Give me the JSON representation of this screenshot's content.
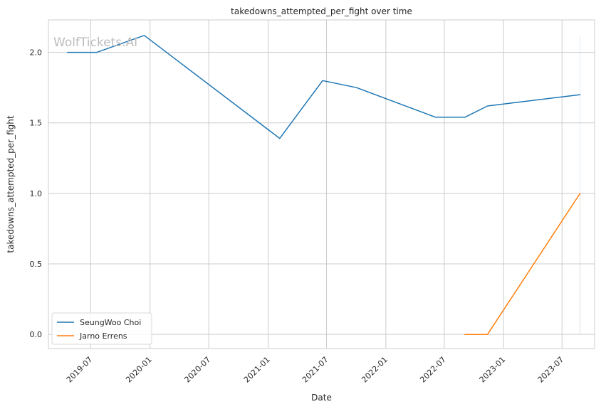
{
  "chart_data": {
    "type": "line",
    "title": "takedowns_attempted_per_fight over time",
    "xlabel": "Date",
    "ylabel": "takedowns_attempted_per_fight",
    "watermark": "WolfTickets.AI",
    "xlim": [
      "2019-02-20",
      "2023-10-10"
    ],
    "ylim": [
      -0.1,
      2.23
    ],
    "x_ticks": [
      "2019-07",
      "2020-01",
      "2020-07",
      "2021-01",
      "2021-07",
      "2022-01",
      "2022-07",
      "2023-01",
      "2023-07"
    ],
    "y_ticks": [
      "0.0",
      "0.5",
      "1.0",
      "1.5",
      "2.0"
    ],
    "grid": true,
    "legend_position": "lower-left",
    "series": [
      {
        "name": "SeungWoo Choi",
        "color": "#1f77b4",
        "points": [
          {
            "x": "2019-04-20",
            "y": 2.0
          },
          {
            "x": "2019-07-20",
            "y": 2.0
          },
          {
            "x": "2019-12-14",
            "y": 2.12
          },
          {
            "x": "2021-02-06",
            "y": 1.39
          },
          {
            "x": "2021-06-19",
            "y": 1.8
          },
          {
            "x": "2021-10-02",
            "y": 1.75
          },
          {
            "x": "2022-06-04",
            "y": 1.54
          },
          {
            "x": "2022-09-03",
            "y": 1.54
          },
          {
            "x": "2022-11-12",
            "y": 1.62
          },
          {
            "x": "2023-08-26",
            "y": 1.7
          }
        ]
      },
      {
        "name": "Jarno Errens",
        "color": "#ff7f0e",
        "points": [
          {
            "x": "2022-09-03",
            "y": 0.0
          },
          {
            "x": "2022-11-12",
            "y": 0.0
          },
          {
            "x": "2023-08-26",
            "y": 1.0
          }
        ]
      }
    ]
  }
}
